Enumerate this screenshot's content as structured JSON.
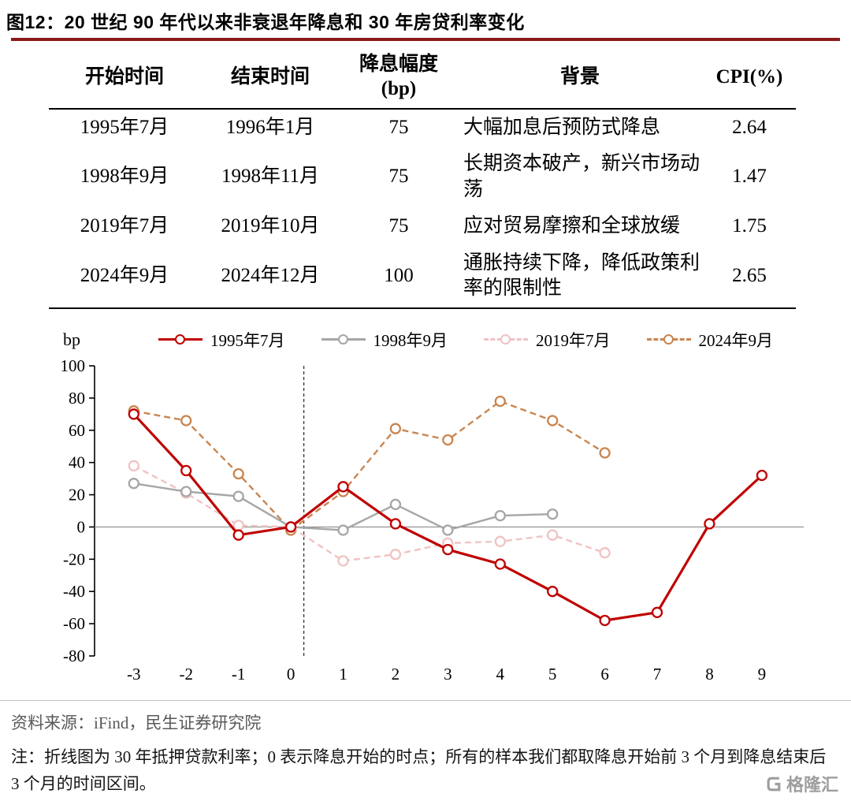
{
  "page": {
    "title": "图12：20 世纪 90 年代以来非衰退年降息和 30 年房贷利率变化"
  },
  "table": {
    "headers": [
      "开始时间",
      "结束时间",
      "降息幅度",
      "背景",
      "CPI(%)"
    ],
    "header_bp_unit": "(bp)",
    "rows": [
      [
        "1995年7月",
        "1996年1月",
        "75",
        "大幅加息后预防式降息",
        "2.64"
      ],
      [
        "1998年9月",
        "1998年11月",
        "75",
        "长期资本破产，新兴市场动荡",
        "1.47"
      ],
      [
        "2019年7月",
        "2019年10月",
        "75",
        "应对贸易摩擦和全球放缓",
        "1.75"
      ],
      [
        "2024年9月",
        "2024年12月",
        "100",
        "通胀持续下降，降低政策利率的限制性",
        "2.65"
      ]
    ]
  },
  "chart_data": {
    "type": "line",
    "ylabel": "bp",
    "xlabel": "",
    "ylim": [
      -80,
      100
    ],
    "yticks": [
      100,
      80,
      60,
      40,
      20,
      0,
      -20,
      -40,
      -60,
      -80
    ],
    "x": [
      -3,
      -2,
      -1,
      0,
      1,
      2,
      3,
      4,
      5,
      6,
      7,
      8,
      9
    ],
    "zero_line": true,
    "vline_x": 0.25,
    "legend_position": "top",
    "series": [
      {
        "name": "1995年7月",
        "color": "#c00000",
        "dash": false,
        "values": [
          70,
          35,
          -5,
          0,
          25,
          2,
          -14,
          -23,
          -40,
          -58,
          -53,
          2,
          32
        ]
      },
      {
        "name": "1998年9月",
        "color": "#a6a6a6",
        "dash": false,
        "values": [
          27,
          22,
          19,
          0,
          -2,
          14,
          -2,
          7,
          8
        ]
      },
      {
        "name": "2019年7月",
        "color": "#f0c3c3",
        "dash": true,
        "values": [
          38,
          21,
          1,
          0,
          -21,
          -17,
          -10,
          -9,
          -5,
          -16
        ]
      },
      {
        "name": "2024年9月",
        "color": "#c9854f",
        "dash": true,
        "values": [
          72,
          66,
          33,
          -2,
          22,
          61,
          54,
          78,
          66,
          46
        ]
      }
    ]
  },
  "footer": {
    "source": "资料来源：iFind，民生证券研究院",
    "note": "注：折线图为 30 年抵押贷款利率；0 表示降息开始的时点；所有的样本我们都取降息开始前 3 个月到降息结束后 3 个月的时间区间。",
    "logo_text": "格隆汇"
  },
  "colors": {
    "title_underline": "#8a1a1a"
  }
}
